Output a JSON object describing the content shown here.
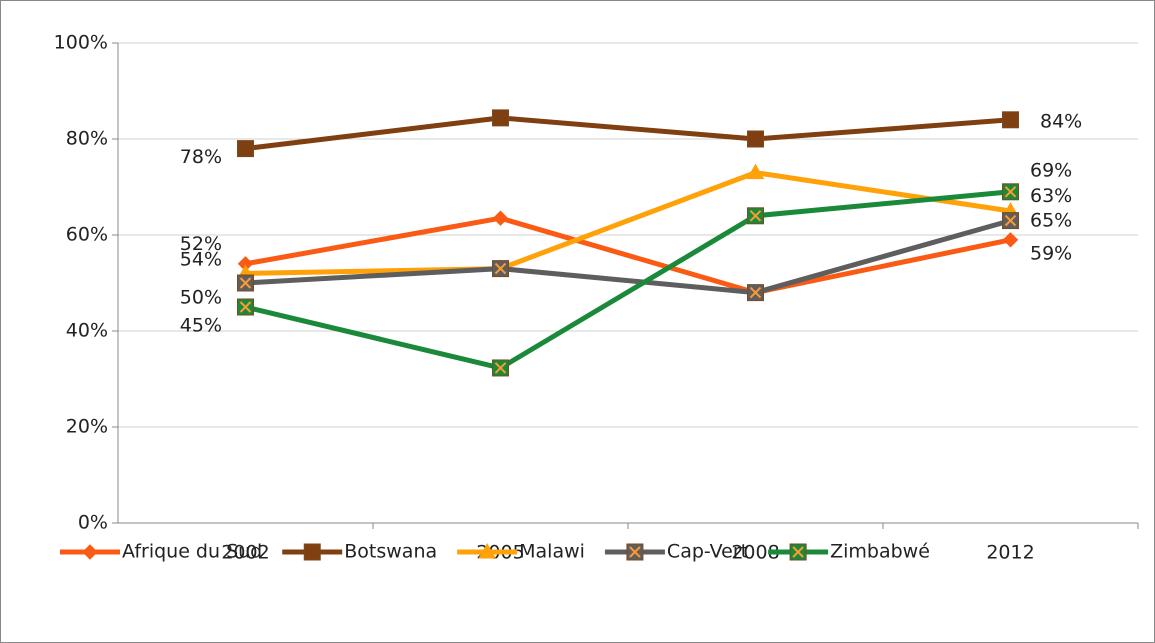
{
  "chart_data": {
    "type": "line",
    "categories": [
      "2002",
      "2005",
      "2008",
      "2012"
    ],
    "ylim": [
      0,
      100
    ],
    "yticks": [
      {
        "value": 0,
        "label": "0%"
      },
      {
        "value": 20,
        "label": "20%"
      },
      {
        "value": 40,
        "label": "40%"
      },
      {
        "value": 60,
        "label": "60%"
      },
      {
        "value": 80,
        "label": "80%"
      },
      {
        "value": 100,
        "label": "100%"
      }
    ],
    "grid": true,
    "legend": "bottom",
    "series": [
      {
        "name": "Afrique du Sud",
        "color": "#fa5a14",
        "marker": "diamond",
        "values": [
          54,
          63.5,
          48,
          59
        ],
        "value_labels": [
          "54%",
          null,
          null,
          "59%"
        ]
      },
      {
        "name": "Botswana",
        "color": "#7f3f10",
        "marker": "square",
        "values": [
          78,
          84.4,
          80,
          84
        ],
        "value_labels": [
          "78%",
          null,
          null,
          "84%"
        ]
      },
      {
        "name": "Malawi",
        "color": "#ffa20a",
        "marker": "triangle",
        "values": [
          52,
          53,
          73,
          65
        ],
        "value_labels": [
          "52%",
          null,
          null,
          "65%"
        ]
      },
      {
        "name": "Cap-Vert",
        "color": "#5e5e5e",
        "marker": "xsquare",
        "values": [
          50,
          53,
          48,
          63
        ],
        "value_labels": [
          "50%",
          null,
          null,
          "63%"
        ]
      },
      {
        "name": "Zimbabwé",
        "color": "#1a8a3a",
        "marker": "xsquare",
        "values": [
          45,
          32.3,
          64,
          69
        ],
        "value_labels": [
          "45%",
          null,
          null,
          "69%"
        ]
      }
    ]
  }
}
